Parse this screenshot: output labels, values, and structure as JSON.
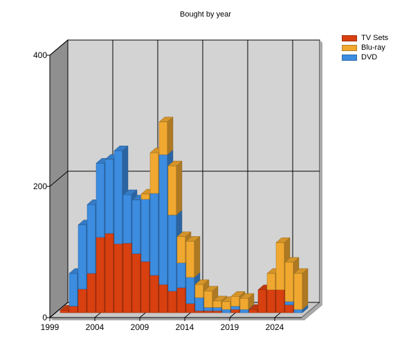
{
  "chart_data": {
    "type": "bar",
    "stacked": true,
    "title": "Bought by year",
    "xlabel": "",
    "ylabel": "",
    "x": [
      2000,
      2001,
      2002,
      2003,
      2004,
      2005,
      2006,
      2007,
      2008,
      2009,
      2010,
      2011,
      2012,
      2013,
      2014,
      2015,
      2016,
      2017,
      2018,
      2019,
      2020,
      2021,
      2022,
      2023,
      2024,
      2025,
      2026
    ],
    "xlim": [
      1999,
      2027
    ],
    "xticks": [
      1999,
      2004,
      2009,
      2014,
      2019,
      2024
    ],
    "ylim": [
      0,
      400
    ],
    "yticks": [
      0,
      200,
      400
    ],
    "grid": true,
    "legend_position": "top-right",
    "series": [
      {
        "name": "TV Sets",
        "color": "#d84010",
        "values": [
          4,
          10,
          36,
          60,
          115,
          121,
          105,
          106,
          90,
          78,
          57,
          43,
          33,
          38,
          14,
          3,
          3,
          3,
          0,
          5,
          0,
          5,
          35,
          35,
          35,
          12,
          0
        ]
      },
      {
        "name": "DVD",
        "color": "#3c8ce0",
        "values": [
          0,
          50,
          98,
          105,
          113,
          113,
          142,
          74,
          82,
          95,
          125,
          198,
          116,
          38,
          40,
          20,
          5,
          5,
          5,
          5,
          5,
          0,
          0,
          0,
          0,
          5,
          5
        ]
      },
      {
        "name": "Blu-ray",
        "color": "#f0a830",
        "values": [
          0,
          0,
          0,
          0,
          0,
          0,
          0,
          0,
          0,
          8,
          62,
          50,
          75,
          40,
          55,
          20,
          25,
          10,
          12,
          15,
          17,
          0,
          0,
          25,
          72,
          60,
          55
        ]
      }
    ]
  }
}
